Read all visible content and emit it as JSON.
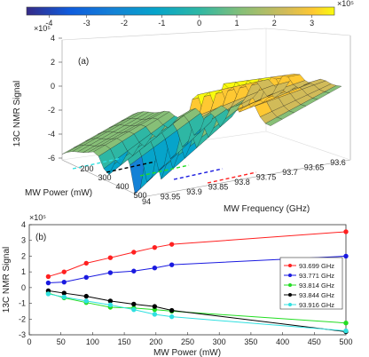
{
  "chart_data": [
    {
      "type": "surface",
      "panel_label": "(a)",
      "xlabel": "MW Power (mW)",
      "ylabel": "MW Frequency (GHz)",
      "zlabel": "13C NMR Signal",
      "z_exponent": "×10⁵",
      "colorbar": {
        "ticks": [
          -4,
          -3,
          -2,
          -1,
          0,
          1,
          2,
          3
        ],
        "range": [
          -4.6,
          3.6
        ],
        "exponent": "×10⁵",
        "colormap": "parula"
      },
      "x_ticks": [
        200,
        300,
        400,
        500
      ],
      "y_ticks": [
        94,
        93.95,
        93.9,
        93.85,
        93.8,
        93.75,
        93.7,
        93.65,
        93.6
      ],
      "z_ticks": [
        -6,
        -4,
        -2,
        0,
        2,
        4
      ]
    },
    {
      "type": "line",
      "panel_label": "(b)",
      "xlabel": "MW Power (mW)",
      "ylabel": "13C NMR Signal",
      "y_exponent": "×10⁵",
      "xlim": [
        0,
        500
      ],
      "ylim": [
        -3,
        4
      ],
      "x_ticks": [
        0,
        50,
        100,
        150,
        200,
        250,
        300,
        350,
        400,
        450,
        500
      ],
      "y_ticks": [
        -3,
        -2,
        -1,
        0,
        1,
        2,
        3,
        4
      ],
      "grid": false,
      "legend_position": "right",
      "x": [
        30,
        55,
        90,
        128,
        165,
        198,
        225,
        500
      ],
      "series": [
        {
          "name": "93.699 GHz",
          "color": "#ff2020",
          "values": [
            0.7,
            1.0,
            1.55,
            1.9,
            2.25,
            2.55,
            2.75,
            3.55
          ]
        },
        {
          "name": "93.771 GHz",
          "color": "#1a1ae0",
          "values": [
            0.3,
            0.35,
            0.65,
            0.95,
            1.05,
            1.25,
            1.45,
            2.0
          ]
        },
        {
          "name": "93.814 GHz",
          "color": "#22dd22",
          "values": [
            -0.35,
            -0.65,
            -0.95,
            -1.25,
            -1.3,
            -1.4,
            -1.5,
            -2.25
          ]
        },
        {
          "name": "93.844 GHz",
          "color": "#000000",
          "values": [
            -0.2,
            -0.35,
            -0.55,
            -0.85,
            -1.05,
            -1.2,
            -1.45,
            -2.8
          ]
        },
        {
          "name": "93.916 GHz",
          "color": "#30e0e0",
          "values": [
            -0.4,
            -0.6,
            -0.85,
            -1.1,
            -1.4,
            -1.7,
            -1.85,
            -2.75
          ]
        }
      ]
    }
  ]
}
